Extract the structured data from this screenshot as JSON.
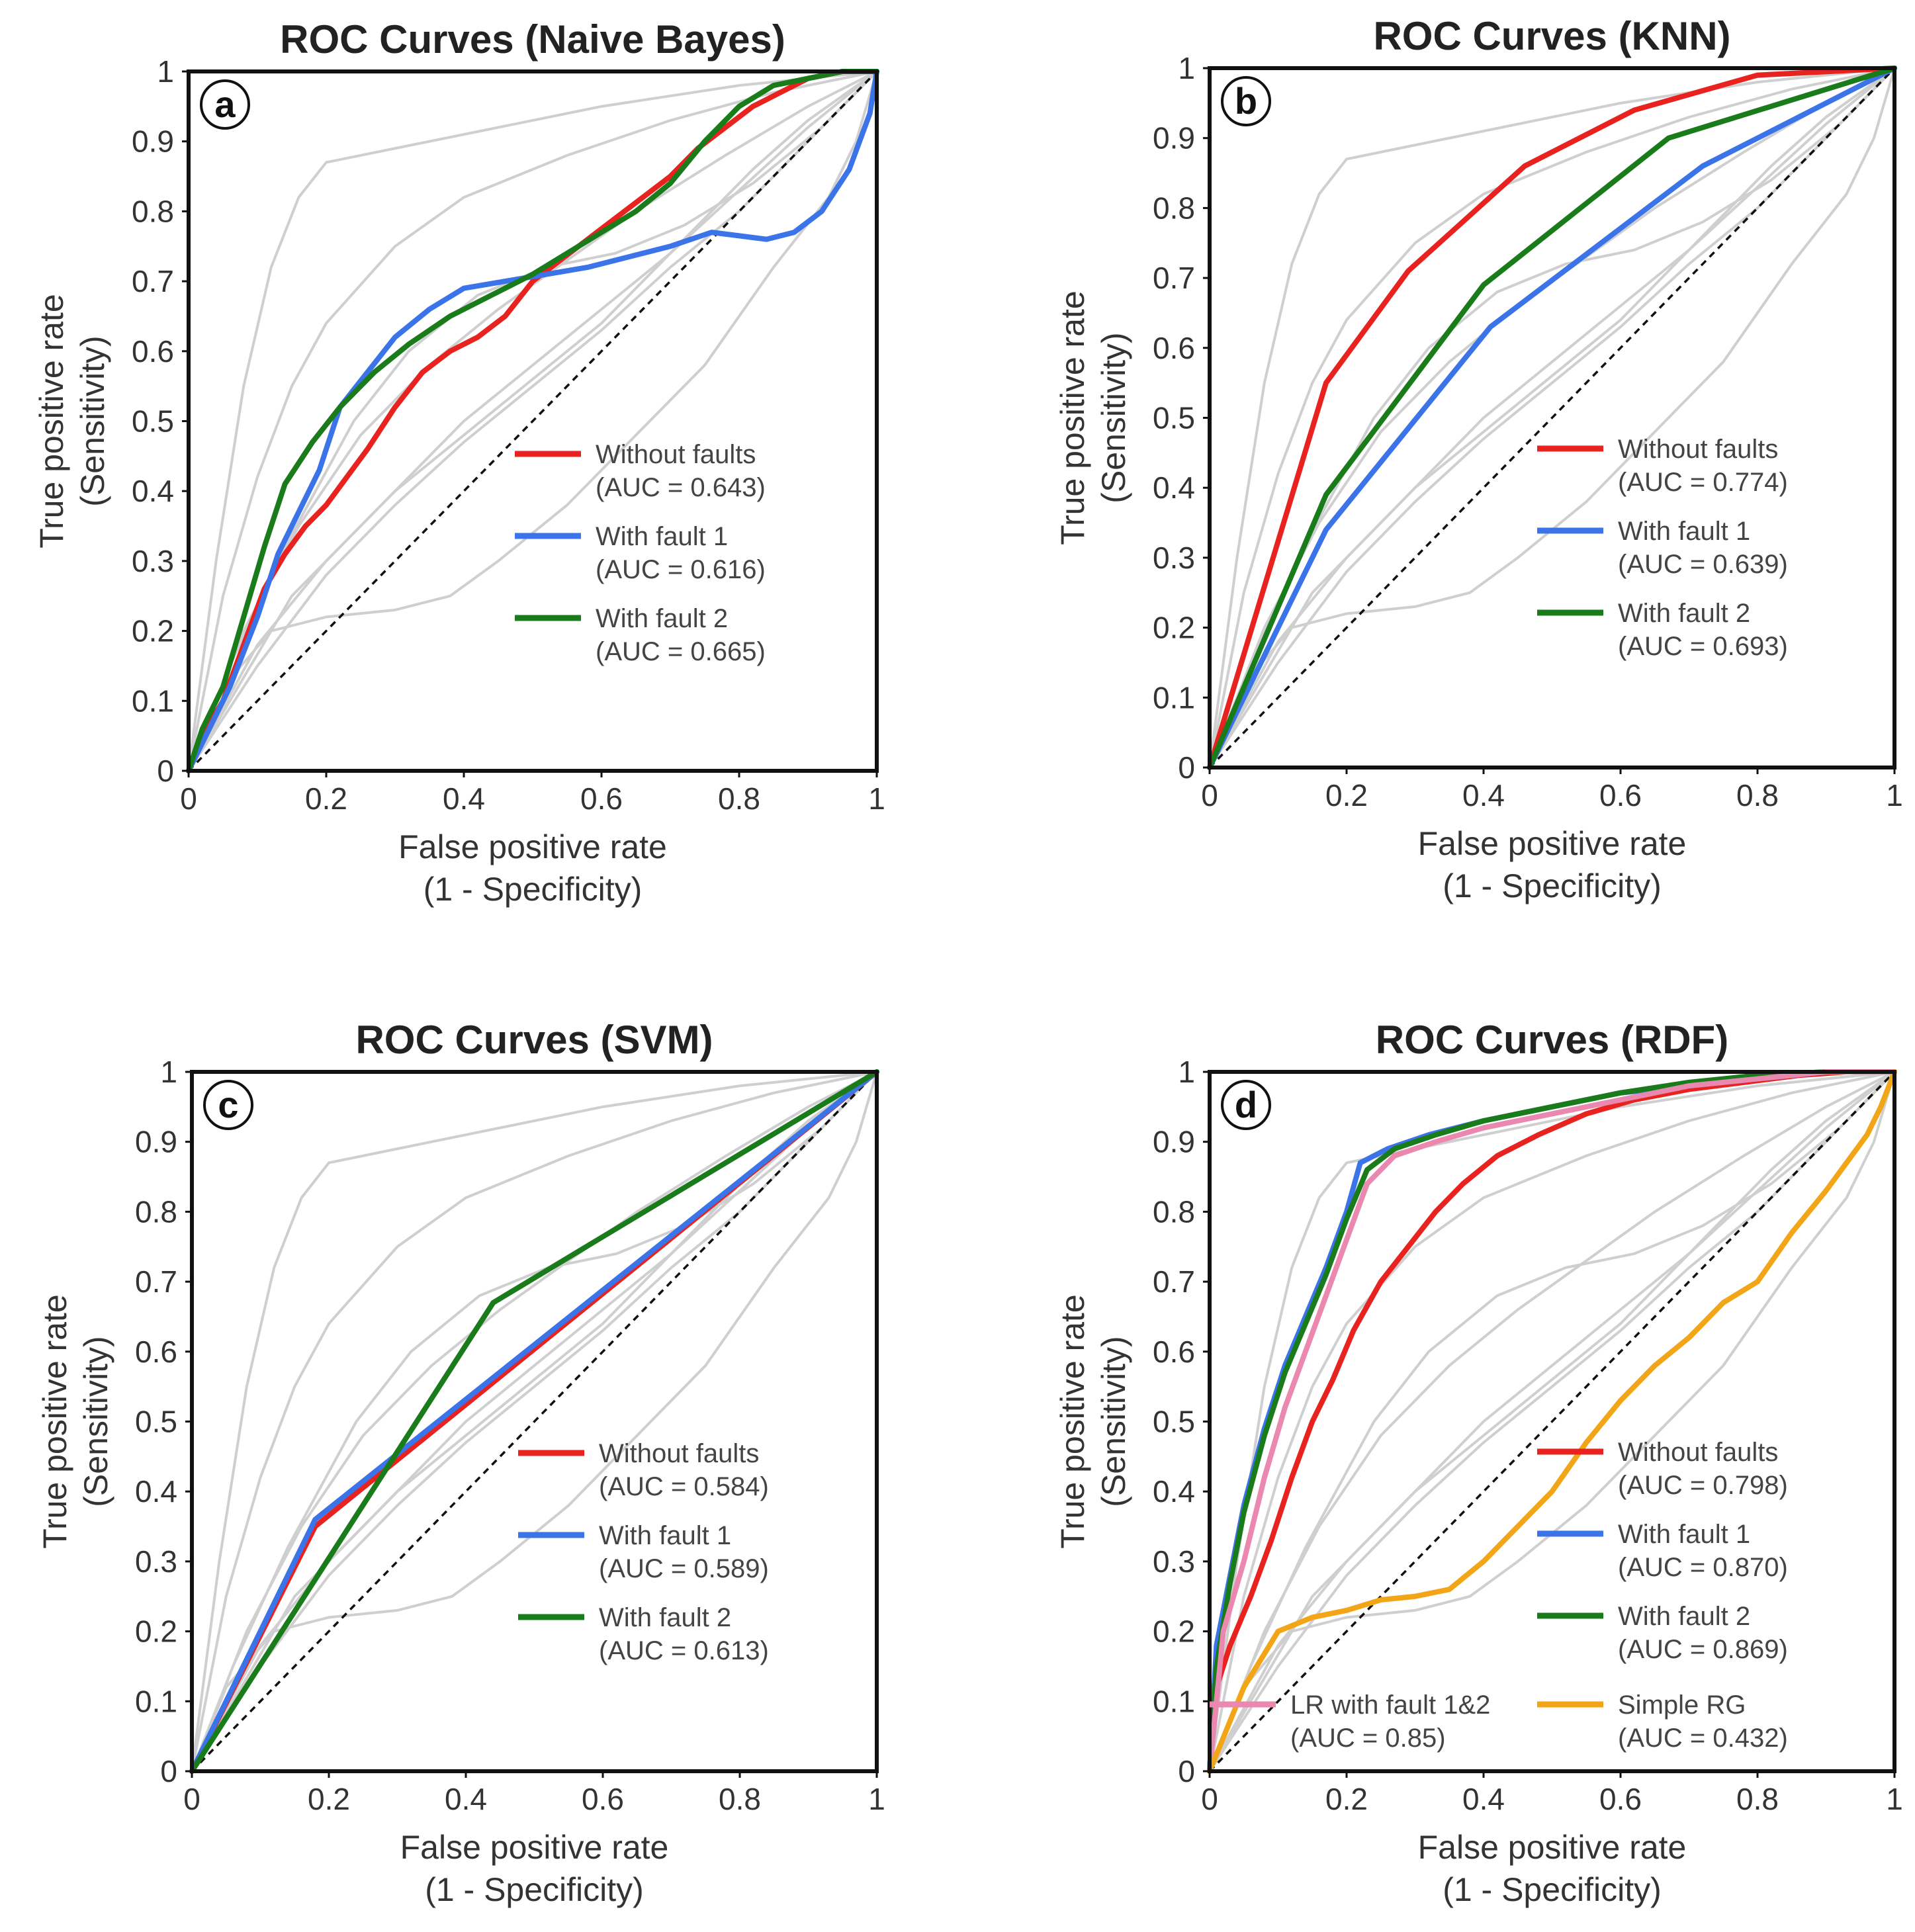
{
  "figure": {
    "caption": ""
  },
  "chart_data": [
    {
      "type": "line",
      "panel_label": "a",
      "title": "ROC Curves  (Naive Bayes)",
      "xlabel": [
        "False positive rate",
        "(1 - Specificity)"
      ],
      "ylabel": [
        "True positive rate",
        "(Sensitivity)"
      ],
      "xlim": [
        0,
        1
      ],
      "ylim": [
        0,
        1
      ],
      "xticks": [
        "0",
        "0.2",
        "0.4",
        "0.6",
        "0.8",
        "1"
      ],
      "yticks": [
        "0",
        "0.1",
        "0.2",
        "0.3",
        "0.4",
        "0.5",
        "0.6",
        "0.7",
        "0.8",
        "0.9",
        "1"
      ],
      "series": [
        {
          "name": "Without faults",
          "auc_label": "(AUC = 0.643)",
          "color": "#e8231f",
          "x": [
            0,
            0.02,
            0.05,
            0.08,
            0.11,
            0.14,
            0.17,
            0.2,
            0.23,
            0.26,
            0.3,
            0.34,
            0.38,
            0.42,
            0.46,
            0.5,
            0.54,
            0.58,
            0.62,
            0.66,
            0.7,
            0.74,
            0.78,
            0.82,
            0.86,
            0.9,
            0.95,
            1
          ],
          "y": [
            0,
            0.05,
            0.1,
            0.18,
            0.26,
            0.31,
            0.35,
            0.38,
            0.42,
            0.46,
            0.52,
            0.57,
            0.6,
            0.62,
            0.65,
            0.7,
            0.73,
            0.76,
            0.79,
            0.82,
            0.85,
            0.89,
            0.92,
            0.95,
            0.97,
            0.99,
            1.0,
            1.0
          ]
        },
        {
          "name": "With fault 1",
          "auc_label": "(AUC = 0.616)",
          "color": "#3b73e8",
          "x": [
            0,
            0.03,
            0.06,
            0.1,
            0.13,
            0.16,
            0.19,
            0.22,
            0.26,
            0.3,
            0.35,
            0.4,
            0.46,
            0.52,
            0.58,
            0.64,
            0.7,
            0.76,
            0.8,
            0.84,
            0.88,
            0.92,
            0.96,
            0.99,
            1
          ],
          "y": [
            0,
            0.06,
            0.12,
            0.22,
            0.31,
            0.37,
            0.43,
            0.52,
            0.57,
            0.62,
            0.66,
            0.69,
            0.7,
            0.71,
            0.72,
            0.735,
            0.75,
            0.77,
            0.765,
            0.76,
            0.77,
            0.8,
            0.86,
            0.94,
            1.0
          ]
        },
        {
          "name": "With fault 2",
          "auc_label": "(AUC = 0.665)",
          "color": "#1a7b1a",
          "x": [
            0,
            0.02,
            0.05,
            0.08,
            0.11,
            0.14,
            0.18,
            0.22,
            0.27,
            0.32,
            0.38,
            0.44,
            0.5,
            0.55,
            0.6,
            0.65,
            0.7,
            0.75,
            0.8,
            0.85,
            0.9,
            0.95,
            1
          ],
          "y": [
            0,
            0.06,
            0.12,
            0.22,
            0.32,
            0.41,
            0.47,
            0.52,
            0.57,
            0.61,
            0.65,
            0.68,
            0.71,
            0.74,
            0.77,
            0.8,
            0.84,
            0.9,
            0.95,
            0.98,
            0.99,
            1.0,
            1.0
          ]
        }
      ]
    },
    {
      "type": "line",
      "panel_label": "b",
      "title": "ROC Curves  (KNN)",
      "xlabel": [
        "False positive rate",
        "(1 - Specificity)"
      ],
      "ylabel": [
        "True positive rate",
        "(Sensitivity)"
      ],
      "xlim": [
        0,
        1
      ],
      "ylim": [
        0,
        1
      ],
      "xticks": [
        "0",
        "0.2",
        "0.4",
        "0.6",
        "0.8",
        "1"
      ],
      "yticks": [
        "0",
        "0.1",
        "0.2",
        "0.3",
        "0.4",
        "0.5",
        "0.6",
        "0.7",
        "0.8",
        "0.9",
        "1"
      ],
      "series": [
        {
          "name": "Without faults",
          "auc_label": "(AUC = 0.774)",
          "color": "#e8231f",
          "x": [
            0,
            0.17,
            0.29,
            0.46,
            0.62,
            0.8,
            1
          ],
          "y": [
            0,
            0.55,
            0.71,
            0.86,
            0.94,
            0.99,
            1.0
          ]
        },
        {
          "name": "With fault 1",
          "auc_label": "(AUC = 0.639)",
          "color": "#3b73e8",
          "x": [
            0,
            0.17,
            0.41,
            0.72,
            1
          ],
          "y": [
            0,
            0.34,
            0.63,
            0.86,
            1.0
          ]
        },
        {
          "name": "With fault 2",
          "auc_label": "(AUC = 0.693)",
          "color": "#1a7b1a",
          "x": [
            0,
            0.17,
            0.4,
            0.67,
            1
          ],
          "y": [
            0,
            0.39,
            0.69,
            0.9,
            1.0
          ]
        }
      ]
    },
    {
      "type": "line",
      "panel_label": "c",
      "title": "ROC Curves  (SVM)",
      "xlabel": [
        "False positive rate",
        "(1 - Specificity)"
      ],
      "ylabel": [
        "True positive rate",
        "(Sensitivity)"
      ],
      "xlim": [
        0,
        1
      ],
      "ylim": [
        0,
        1
      ],
      "xticks": [
        "0",
        "0.2",
        "0.4",
        "0.6",
        "0.8",
        "1"
      ],
      "yticks": [
        "0",
        "0.1",
        "0.2",
        "0.3",
        "0.4",
        "0.5",
        "0.6",
        "0.7",
        "0.8",
        "0.9",
        "1"
      ],
      "series": [
        {
          "name": "Without faults",
          "auc_label": "(AUC = 0.584)",
          "color": "#e8231f",
          "x": [
            0,
            0.18,
            1
          ],
          "y": [
            0,
            0.35,
            1.0
          ]
        },
        {
          "name": "With fault 1",
          "auc_label": "(AUC = 0.589)",
          "color": "#3b73e8",
          "x": [
            0,
            0.18,
            1
          ],
          "y": [
            0,
            0.36,
            1.0
          ]
        },
        {
          "name": "With fault 2",
          "auc_label": "(AUC = 0.613)",
          "color": "#1a7b1a",
          "x": [
            0,
            0.44,
            1
          ],
          "y": [
            0,
            0.67,
            1.0
          ]
        }
      ]
    },
    {
      "type": "line",
      "panel_label": "d",
      "title": "ROC Curves  (RDF)",
      "xlabel": [
        "False positive rate",
        "(1 - Specificity)"
      ],
      "ylabel": [
        "True positive rate",
        "(Sensitivity)"
      ],
      "xlim": [
        0,
        1
      ],
      "ylim": [
        0,
        1
      ],
      "xticks": [
        "0",
        "0.2",
        "0.4",
        "0.6",
        "0.8",
        "1"
      ],
      "yticks": [
        "0",
        "0.1",
        "0.2",
        "0.3",
        "0.4",
        "0.5",
        "0.6",
        "0.7",
        "0.8",
        "0.9",
        "1"
      ],
      "series": [
        {
          "name": "Without faults",
          "auc_label": "(AUC = 0.798)",
          "color": "#e8231f",
          "x": [
            0,
            0.01,
            0.03,
            0.06,
            0.09,
            0.12,
            0.15,
            0.18,
            0.21,
            0.25,
            0.29,
            0.33,
            0.37,
            0.42,
            0.48,
            0.55,
            0.62,
            0.7,
            0.78,
            0.86,
            0.93,
            1
          ],
          "y": [
            0,
            0.12,
            0.18,
            0.25,
            0.33,
            0.42,
            0.5,
            0.56,
            0.63,
            0.7,
            0.75,
            0.8,
            0.84,
            0.88,
            0.91,
            0.94,
            0.96,
            0.975,
            0.985,
            0.995,
            1.0,
            1.0
          ]
        },
        {
          "name": "With fault 1",
          "auc_label": "(AUC = 0.870)",
          "color": "#3b73e8",
          "x": [
            0,
            0.01,
            0.03,
            0.05,
            0.08,
            0.11,
            0.14,
            0.17,
            0.2,
            0.22,
            0.26,
            0.32,
            0.4,
            0.5,
            0.6,
            0.7,
            0.8,
            0.9,
            1
          ],
          "y": [
            0,
            0.18,
            0.28,
            0.38,
            0.49,
            0.58,
            0.65,
            0.72,
            0.8,
            0.87,
            0.89,
            0.91,
            0.93,
            0.95,
            0.97,
            0.98,
            0.99,
            1.0,
            1.0
          ]
        },
        {
          "name": "With fault 2",
          "auc_label": "(AUC = 0.869)",
          "color": "#1a7b1a",
          "x": [
            0,
            0.01,
            0.03,
            0.05,
            0.08,
            0.11,
            0.14,
            0.17,
            0.2,
            0.23,
            0.27,
            0.33,
            0.4,
            0.5,
            0.6,
            0.7,
            0.8,
            0.9,
            1
          ],
          "y": [
            0,
            0.15,
            0.27,
            0.37,
            0.48,
            0.57,
            0.64,
            0.71,
            0.79,
            0.86,
            0.89,
            0.91,
            0.93,
            0.95,
            0.97,
            0.985,
            0.995,
            1.0,
            1.0
          ]
        },
        {
          "name": "LR with fault 1&2",
          "auc_label": "(AUC = 0.85)",
          "color": "#ea88b0",
          "x": [
            0,
            0.02,
            0.05,
            0.08,
            0.11,
            0.14,
            0.17,
            0.2,
            0.23,
            0.27,
            0.33,
            0.4,
            0.5,
            0.6,
            0.7,
            0.8,
            0.9,
            1
          ],
          "y": [
            0,
            0.2,
            0.3,
            0.42,
            0.52,
            0.6,
            0.68,
            0.76,
            0.84,
            0.88,
            0.9,
            0.92,
            0.94,
            0.96,
            0.98,
            0.99,
            1.0,
            1.0
          ]
        },
        {
          "name": "Simple RG",
          "auc_label": "(AUC = 0.432)",
          "color": "#f2a516",
          "x": [
            0,
            0.05,
            0.1,
            0.15,
            0.2,
            0.25,
            0.3,
            0.35,
            0.4,
            0.45,
            0.5,
            0.55,
            0.6,
            0.65,
            0.7,
            0.75,
            0.8,
            0.85,
            0.9,
            0.93,
            0.96,
            0.98,
            1
          ],
          "y": [
            0,
            0.12,
            0.2,
            0.22,
            0.23,
            0.245,
            0.25,
            0.26,
            0.3,
            0.35,
            0.4,
            0.47,
            0.53,
            0.58,
            0.62,
            0.67,
            0.7,
            0.77,
            0.83,
            0.87,
            0.91,
            0.95,
            1.0
          ]
        }
      ]
    }
  ]
}
